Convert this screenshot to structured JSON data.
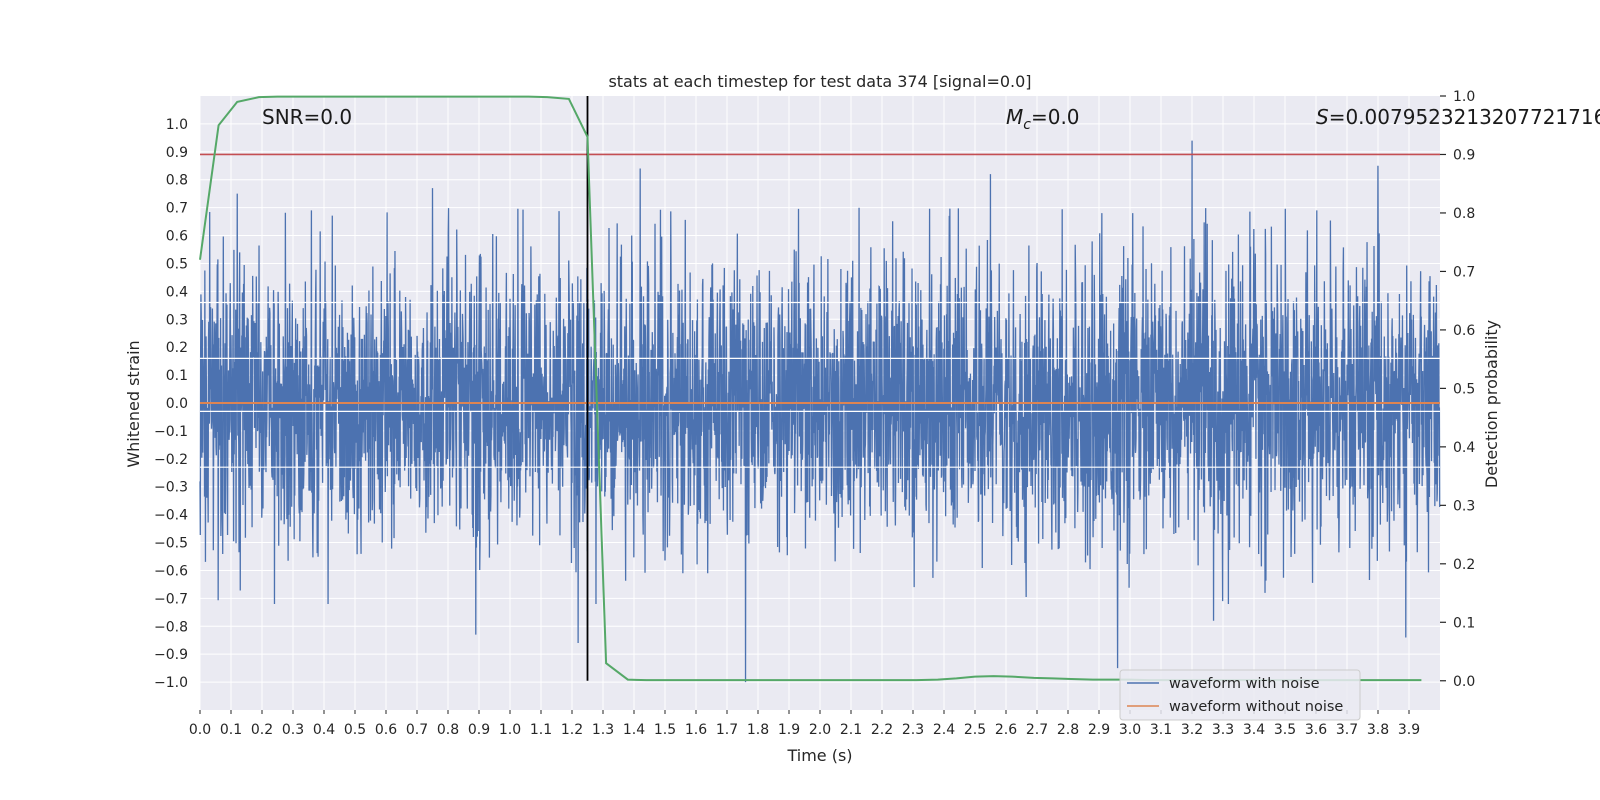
{
  "chart_data": {
    "type": "line",
    "title": "stats at each timestep for test data 374 [signal=0.0]",
    "xlabel": "Time (s)",
    "ylabel": "Whitened strain",
    "y2label": "Detection probability",
    "xlim": [
      0.0,
      4.0
    ],
    "ylim": [
      -1.1,
      1.1
    ],
    "y2lim": [
      -0.05,
      1.0
    ],
    "x_ticks": [
      0.0,
      0.1,
      0.2,
      0.3,
      0.4,
      0.5,
      0.6,
      0.7,
      0.8,
      0.9,
      1.0,
      1.1,
      1.2,
      1.3,
      1.4,
      1.5,
      1.6,
      1.7,
      1.8,
      1.9,
      2.0,
      2.1,
      2.2,
      2.3,
      2.4,
      2.5,
      2.6,
      2.7,
      2.8,
      2.9,
      3.0,
      3.1,
      3.2,
      3.3,
      3.4,
      3.5,
      3.6,
      3.7,
      3.8,
      3.9
    ],
    "x_tick_labels": [
      "0.0",
      "0.1",
      "0.2",
      "0.3",
      "0.4",
      "0.5",
      "0.6",
      "0.7",
      "0.8",
      "0.9",
      "1.0",
      "1.1",
      "1.2",
      "1.3",
      "1.4",
      "1.5",
      "1.6",
      "1.7",
      "1.8",
      "1.9",
      "2.0",
      "2.1",
      "2.2",
      "2.3",
      "2.4",
      "2.5",
      "2.6",
      "2.7",
      "2.8",
      "2.9",
      "3.0",
      "3.1",
      "3.2",
      "3.3",
      "3.4",
      "3.5",
      "3.6",
      "3.7",
      "3.8",
      "3.9"
    ],
    "y_ticks": [
      1.0,
      0.9,
      0.8,
      0.7,
      0.6,
      0.5,
      0.4,
      0.3,
      0.2,
      0.1,
      0.0,
      -0.1,
      -0.2,
      -0.3,
      -0.4,
      -0.5,
      -0.6,
      -0.7,
      -0.8,
      -0.9,
      -1.0
    ],
    "y_tick_labels": [
      "1.0",
      "0.9",
      "0.8",
      "0.7",
      "0.6",
      "0.5",
      "0.4",
      "0.3",
      "0.2",
      "0.1",
      "0.0",
      "−0.1",
      "−0.2",
      "−0.3",
      "−0.4",
      "−0.5",
      "−0.6",
      "−0.7",
      "−0.8",
      "−0.9",
      "−1.0"
    ],
    "y2_ticks": [
      1.0,
      0.9,
      0.8,
      0.7,
      0.6,
      0.5,
      0.4,
      0.3,
      0.2,
      0.1,
      0.0
    ],
    "y2_tick_labels": [
      "1.0",
      "0.9",
      "0.8",
      "0.7",
      "0.6",
      "0.5",
      "0.4",
      "0.3",
      "0.2",
      "0.1",
      "0.0"
    ],
    "series": [
      {
        "name": "waveform with noise",
        "color": "#4c72b0",
        "kind": "noise",
        "duration": 4.0,
        "sample_rate": 1024,
        "amplitude_rms": 0.25,
        "seed": 374,
        "peaks": [
          [
            0.12,
            0.75
          ],
          [
            0.75,
            0.77
          ],
          [
            1.42,
            0.84
          ],
          [
            1.76,
            0.87
          ],
          [
            1.76,
            -1.0
          ],
          [
            2.55,
            0.82
          ],
          [
            3.2,
            0.94
          ],
          [
            3.8,
            0.85
          ],
          [
            2.96,
            -0.95
          ],
          [
            0.89,
            -0.83
          ],
          [
            1.22,
            -0.86
          ],
          [
            3.89,
            -0.84
          ],
          [
            0.24,
            -0.72
          ],
          [
            3.27,
            -0.78
          ]
        ]
      },
      {
        "name": "waveform without noise",
        "color": "#dd8452",
        "kind": "line",
        "x": [
          0.0,
          4.0
        ],
        "y": [
          0.0,
          0.0
        ]
      },
      {
        "name": "detection probability",
        "color": "#55a868",
        "axis": "right",
        "kind": "line",
        "x": [
          0.0,
          0.06,
          0.12,
          0.19,
          0.25,
          0.31,
          0.38,
          0.44,
          0.5,
          0.56,
          0.62,
          0.69,
          0.75,
          0.81,
          0.88,
          0.94,
          1.0,
          1.06,
          1.12,
          1.19,
          1.25,
          1.31,
          1.38,
          1.44,
          1.5,
          1.56,
          1.62,
          1.69,
          1.75,
          1.81,
          1.88,
          1.94,
          2.0,
          2.06,
          2.12,
          2.19,
          2.25,
          2.31,
          2.38,
          2.44,
          2.5,
          2.56,
          2.62,
          2.69,
          2.75,
          2.81,
          2.88,
          2.94,
          3.0,
          3.06,
          3.12,
          3.19,
          3.25,
          3.31,
          3.38,
          3.44,
          3.5,
          3.56,
          3.62,
          3.69,
          3.75,
          3.81,
          3.88,
          3.94
        ],
        "y": [
          0.72,
          0.95,
          0.99,
          0.998,
          0.999,
          0.999,
          0.999,
          0.999,
          0.999,
          0.999,
          0.999,
          0.999,
          0.999,
          0.999,
          0.999,
          0.999,
          0.999,
          0.999,
          0.998,
          0.995,
          0.93,
          0.03,
          0.002,
          0.001,
          0.001,
          0.001,
          0.001,
          0.001,
          0.001,
          0.001,
          0.001,
          0.001,
          0.001,
          0.001,
          0.001,
          0.001,
          0.001,
          0.001,
          0.002,
          0.004,
          0.007,
          0.008,
          0.007,
          0.005,
          0.004,
          0.003,
          0.002,
          0.002,
          0.002,
          0.001,
          0.001,
          0.001,
          0.001,
          0.001,
          0.001,
          0.001,
          0.001,
          0.001,
          0.001,
          0.001,
          0.001,
          0.001,
          0.001,
          0.001
        ]
      }
    ],
    "threshold": {
      "value": 0.9,
      "axis": "right",
      "color": "#c44e52"
    },
    "vertical_marker": {
      "x": 1.25,
      "color": "#000000"
    },
    "annotations": [
      {
        "text": "SNR=0.0",
        "x": 0.2
      },
      {
        "text": "=0.0",
        "symbol": "M",
        "subscript": "c",
        "x": 2.6
      },
      {
        "text": "=0.0079523213207721716",
        "symbol": "S",
        "x": 3.6
      }
    ],
    "legend": {
      "position": "lower-right",
      "entries": [
        "waveform with noise",
        "waveform without noise"
      ]
    },
    "grid": true,
    "background": "#eaeaf2"
  }
}
